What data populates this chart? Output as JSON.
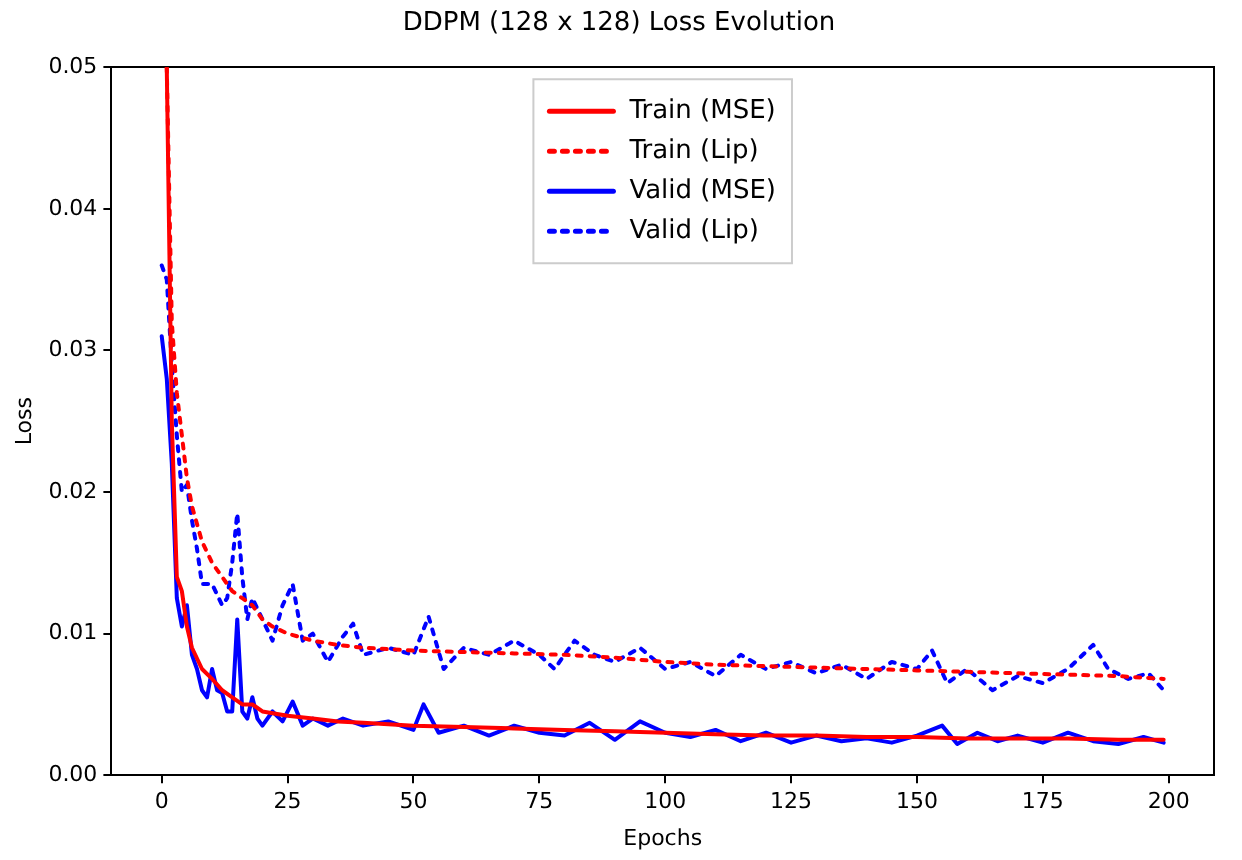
{
  "chart_data": {
    "type": "line",
    "title": "DDPM (128 x 128) Loss Evolution",
    "xlabel": "Epochs",
    "ylabel": "Loss",
    "xlim": [
      -10,
      209
    ],
    "xticks": [
      0,
      25,
      50,
      75,
      100,
      125,
      150,
      175,
      200
    ],
    "ylim": [
      0,
      0.05
    ],
    "yticks": [
      {
        "value": 0,
        "label": "0.00"
      },
      {
        "value": 0.01,
        "label": "0.01"
      },
      {
        "value": 0.02,
        "label": "0.02"
      },
      {
        "value": 0.03,
        "label": "0.03"
      },
      {
        "value": 0.04,
        "label": "0.04"
      },
      {
        "value": 0.05,
        "label": "0.05"
      }
    ],
    "grid": false,
    "legend": "top",
    "marker": "none",
    "series": [
      {
        "name": "Train (MSE)",
        "color": "#ff0000",
        "line_style": "solid",
        "x": [
          1,
          2,
          3,
          4,
          5,
          6,
          8,
          10,
          12,
          14,
          16,
          18,
          20,
          25,
          30,
          35,
          40,
          50,
          60,
          70,
          80,
          90,
          100,
          110,
          120,
          130,
          140,
          150,
          160,
          170,
          180,
          190,
          199
        ],
        "values": [
          0.05,
          0.025,
          0.014,
          0.013,
          0.0105,
          0.009,
          0.0075,
          0.0068,
          0.006,
          0.0055,
          0.005,
          0.005,
          0.0045,
          0.0042,
          0.004,
          0.0038,
          0.0037,
          0.0035,
          0.0034,
          0.0033,
          0.0032,
          0.0031,
          0.003,
          0.0029,
          0.0028,
          0.0028,
          0.0027,
          0.0027,
          0.0026,
          0.0026,
          0.0026,
          0.0025,
          0.0025
        ]
      },
      {
        "name": "Train (Lip)",
        "color": "#ff0000",
        "line_style": "dotted",
        "x": [
          1,
          2,
          3,
          4,
          5,
          6,
          8,
          10,
          12,
          14,
          16,
          18,
          20,
          22,
          25,
          30,
          35,
          40,
          50,
          60,
          70,
          80,
          90,
          100,
          110,
          120,
          130,
          140,
          150,
          160,
          170,
          180,
          190,
          199
        ],
        "values": [
          0.05,
          0.032,
          0.027,
          0.024,
          0.021,
          0.019,
          0.0165,
          0.015,
          0.014,
          0.013,
          0.0125,
          0.012,
          0.011,
          0.0105,
          0.01,
          0.0095,
          0.0092,
          0.009,
          0.0088,
          0.0087,
          0.0086,
          0.0085,
          0.0083,
          0.008,
          0.0078,
          0.0077,
          0.0076,
          0.0075,
          0.0074,
          0.0073,
          0.0072,
          0.0071,
          0.007,
          0.0068
        ]
      },
      {
        "name": "Valid (MSE)",
        "color": "#0000ff",
        "line_style": "solid",
        "x": [
          0,
          1,
          2,
          3,
          4,
          5,
          6,
          7,
          8,
          9,
          10,
          11,
          12,
          13,
          14,
          15,
          16,
          17,
          18,
          19,
          20,
          22,
          24,
          26,
          28,
          30,
          33,
          36,
          40,
          45,
          50,
          52,
          55,
          60,
          65,
          70,
          75,
          80,
          85,
          90,
          95,
          100,
          105,
          110,
          115,
          120,
          125,
          130,
          135,
          140,
          145,
          150,
          155,
          158,
          162,
          166,
          170,
          175,
          180,
          185,
          190,
          195,
          199
        ],
        "values": [
          0.031,
          0.028,
          0.022,
          0.0125,
          0.0105,
          0.012,
          0.0085,
          0.0075,
          0.006,
          0.0055,
          0.0075,
          0.006,
          0.0058,
          0.0045,
          0.0045,
          0.011,
          0.0045,
          0.004,
          0.0055,
          0.004,
          0.0035,
          0.0045,
          0.0038,
          0.0052,
          0.0035,
          0.004,
          0.0035,
          0.004,
          0.0035,
          0.0038,
          0.0032,
          0.005,
          0.003,
          0.0035,
          0.0028,
          0.0035,
          0.003,
          0.0028,
          0.0037,
          0.0025,
          0.0038,
          0.003,
          0.0027,
          0.0032,
          0.0024,
          0.003,
          0.0023,
          0.0028,
          0.0024,
          0.0026,
          0.0023,
          0.0028,
          0.0035,
          0.0022,
          0.003,
          0.0024,
          0.0028,
          0.0023,
          0.003,
          0.0024,
          0.0022,
          0.0027,
          0.0023
        ]
      },
      {
        "name": "Valid (Lip)",
        "color": "#0000ff",
        "line_style": "dotted",
        "x": [
          0,
          1,
          2,
          3,
          4,
          5,
          6,
          7,
          8,
          10,
          12,
          13,
          14,
          15,
          16,
          17,
          18,
          20,
          22,
          24,
          26,
          28,
          30,
          33,
          36,
          38,
          40,
          45,
          50,
          53,
          56,
          60,
          65,
          70,
          75,
          78,
          82,
          86,
          90,
          95,
          100,
          105,
          110,
          115,
          120,
          125,
          130,
          135,
          140,
          145,
          150,
          153,
          156,
          160,
          165,
          170,
          175,
          180,
          185,
          188,
          192,
          196,
          199
        ],
        "values": [
          0.036,
          0.035,
          0.029,
          0.024,
          0.02,
          0.0205,
          0.018,
          0.016,
          0.0135,
          0.0135,
          0.012,
          0.0125,
          0.015,
          0.0185,
          0.014,
          0.011,
          0.0125,
          0.011,
          0.0095,
          0.012,
          0.0135,
          0.0095,
          0.01,
          0.008,
          0.0098,
          0.0107,
          0.0085,
          0.009,
          0.0085,
          0.0112,
          0.0075,
          0.009,
          0.0085,
          0.0095,
          0.0085,
          0.0075,
          0.0095,
          0.0085,
          0.008,
          0.009,
          0.0075,
          0.008,
          0.007,
          0.0085,
          0.0075,
          0.008,
          0.0072,
          0.0078,
          0.0068,
          0.008,
          0.0075,
          0.0088,
          0.0065,
          0.0075,
          0.006,
          0.007,
          0.0065,
          0.0075,
          0.0092,
          0.0075,
          0.0068,
          0.0072,
          0.006
        ]
      }
    ]
  }
}
